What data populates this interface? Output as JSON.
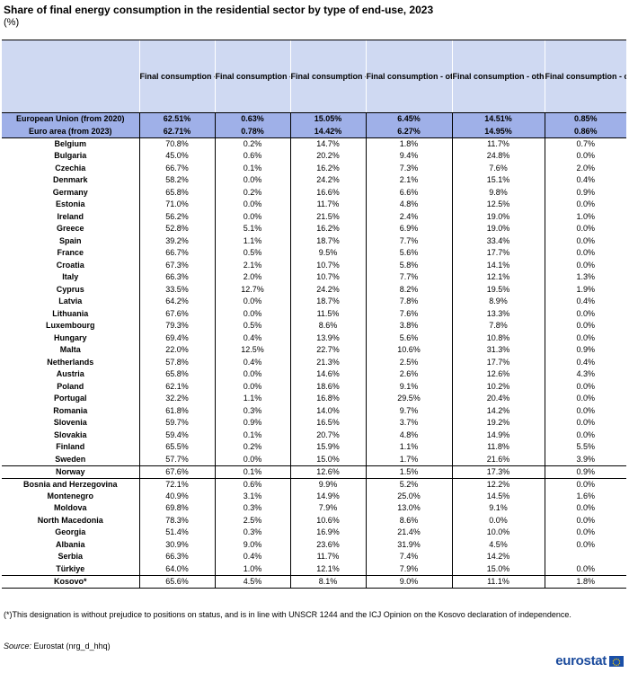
{
  "title": "Share of final energy consumption in the residential sector by type of end-use, 2023",
  "subtitle": "(%)",
  "footnote": "(*)This designation is without prejudice to positions on status, and is in line with UNSCR 1244 and the ICJ Opinion on the Kosovo declaration of independence.",
  "source_label": "Source:",
  "source_text": " Eurostat (nrg_d_hhq)",
  "logo": "eurostat",
  "colors": {
    "header_bg": "#cfd9f2",
    "aggregate_bg": "#9fb0e8",
    "logo_blue": "#1a4a9c"
  },
  "chart_data": {
    "type": "table",
    "columns": [
      "Final consumption - other sectors - households - energy use - space heating",
      "Final consumption - other sectors - households - energy use - space cooling",
      "Final consumption - other sectors - households - energy use - water heating",
      "Final consumption - other sectors - households - energy use - cooking",
      "Final consumption - other sectors - households - energy use - lighting and electrical appliances",
      "Final consumption - other sectors - households - energy use - other end use"
    ],
    "rows": [
      {
        "label": "European Union (from 2020)",
        "values": [
          "62.51%",
          "0.63%",
          "15.05%",
          "6.45%",
          "14.51%",
          "0.85%"
        ]
      },
      {
        "label": "Euro area (from 2023)",
        "values": [
          "62.71%",
          "0.78%",
          "14.42%",
          "6.27%",
          "14.95%",
          "0.86%"
        ]
      },
      {
        "label": "Belgium",
        "values": [
          "70.8%",
          "0.2%",
          "14.7%",
          "1.8%",
          "11.7%",
          "0.7%"
        ]
      },
      {
        "label": "Bulgaria",
        "values": [
          "45.0%",
          "0.6%",
          "20.2%",
          "9.4%",
          "24.8%",
          "0.0%"
        ]
      },
      {
        "label": "Czechia",
        "values": [
          "66.7%",
          "0.1%",
          "16.2%",
          "7.3%",
          "7.6%",
          "2.0%"
        ]
      },
      {
        "label": "Denmark",
        "values": [
          "58.2%",
          "0.0%",
          "24.2%",
          "2.1%",
          "15.1%",
          "0.4%"
        ]
      },
      {
        "label": "Germany",
        "values": [
          "65.8%",
          "0.2%",
          "16.6%",
          "6.6%",
          "9.8%",
          "0.9%"
        ]
      },
      {
        "label": "Estonia",
        "values": [
          "71.0%",
          "0.0%",
          "11.7%",
          "4.8%",
          "12.5%",
          "0.0%"
        ]
      },
      {
        "label": "Ireland",
        "values": [
          "56.2%",
          "0.0%",
          "21.5%",
          "2.4%",
          "19.0%",
          "1.0%"
        ]
      },
      {
        "label": "Greece",
        "values": [
          "52.8%",
          "5.1%",
          "16.2%",
          "6.9%",
          "19.0%",
          "0.0%"
        ]
      },
      {
        "label": "Spain",
        "values": [
          "39.2%",
          "1.1%",
          "18.7%",
          "7.7%",
          "33.4%",
          "0.0%"
        ]
      },
      {
        "label": "France",
        "values": [
          "66.7%",
          "0.5%",
          "9.5%",
          "5.6%",
          "17.7%",
          "0.0%"
        ]
      },
      {
        "label": "Croatia",
        "values": [
          "67.3%",
          "2.1%",
          "10.7%",
          "5.8%",
          "14.1%",
          "0.0%"
        ]
      },
      {
        "label": "Italy",
        "values": [
          "66.3%",
          "2.0%",
          "10.7%",
          "7.7%",
          "12.1%",
          "1.3%"
        ]
      },
      {
        "label": "Cyprus",
        "values": [
          "33.5%",
          "12.7%",
          "24.2%",
          "8.2%",
          "19.5%",
          "1.9%"
        ]
      },
      {
        "label": "Latvia",
        "values": [
          "64.2%",
          "0.0%",
          "18.7%",
          "7.8%",
          "8.9%",
          "0.4%"
        ]
      },
      {
        "label": "Lithuania",
        "values": [
          "67.6%",
          "0.0%",
          "11.5%",
          "7.6%",
          "13.3%",
          "0.0%"
        ]
      },
      {
        "label": "Luxembourg",
        "values": [
          "79.3%",
          "0.5%",
          "8.6%",
          "3.8%",
          "7.8%",
          "0.0%"
        ]
      },
      {
        "label": "Hungary",
        "values": [
          "69.4%",
          "0.4%",
          "13.9%",
          "5.6%",
          "10.8%",
          "0.0%"
        ]
      },
      {
        "label": "Malta",
        "values": [
          "22.0%",
          "12.5%",
          "22.7%",
          "10.6%",
          "31.3%",
          "0.9%"
        ]
      },
      {
        "label": "Netherlands",
        "values": [
          "57.8%",
          "0.4%",
          "21.3%",
          "2.5%",
          "17.7%",
          "0.4%"
        ]
      },
      {
        "label": "Austria",
        "values": [
          "65.8%",
          "0.0%",
          "14.6%",
          "2.6%",
          "12.6%",
          "4.3%"
        ]
      },
      {
        "label": "Poland",
        "values": [
          "62.1%",
          "0.0%",
          "18.6%",
          "9.1%",
          "10.2%",
          "0.0%"
        ]
      },
      {
        "label": "Portugal",
        "values": [
          "32.2%",
          "1.1%",
          "16.8%",
          "29.5%",
          "20.4%",
          "0.0%"
        ]
      },
      {
        "label": "Romania",
        "values": [
          "61.8%",
          "0.3%",
          "14.0%",
          "9.7%",
          "14.2%",
          "0.0%"
        ]
      },
      {
        "label": "Slovenia",
        "values": [
          "59.7%",
          "0.9%",
          "16.5%",
          "3.7%",
          "19.2%",
          "0.0%"
        ]
      },
      {
        "label": "Slovakia",
        "values": [
          "59.4%",
          "0.1%",
          "20.7%",
          "4.8%",
          "14.9%",
          "0.0%"
        ]
      },
      {
        "label": "Finland",
        "values": [
          "65.5%",
          "0.2%",
          "15.9%",
          "1.1%",
          "11.8%",
          "5.5%"
        ]
      },
      {
        "label": "Sweden",
        "values": [
          "57.7%",
          "0.0%",
          "15.0%",
          "1.7%",
          "21.6%",
          "3.9%"
        ]
      },
      {
        "label": "Norway",
        "values": [
          "67.6%",
          "0.1%",
          "12.6%",
          "1.5%",
          "17.3%",
          "0.9%"
        ]
      },
      {
        "label": "Bosnia and Herzegovina",
        "values": [
          "72.1%",
          "0.6%",
          "9.9%",
          "5.2%",
          "12.2%",
          "0.0%"
        ]
      },
      {
        "label": "Montenegro",
        "values": [
          "40.9%",
          "3.1%",
          "14.9%",
          "25.0%",
          "14.5%",
          "1.6%"
        ]
      },
      {
        "label": "Moldova",
        "values": [
          "69.8%",
          "0.3%",
          "7.9%",
          "13.0%",
          "9.1%",
          "0.0%"
        ]
      },
      {
        "label": "North Macedonia",
        "values": [
          "78.3%",
          "2.5%",
          "10.6%",
          "8.6%",
          "0.0%",
          "0.0%"
        ]
      },
      {
        "label": "Georgia",
        "values": [
          "51.4%",
          "0.3%",
          "16.9%",
          "21.4%",
          "10.0%",
          "0.0%"
        ]
      },
      {
        "label": "Albania",
        "values": [
          "30.9%",
          "9.0%",
          "23.6%",
          "31.9%",
          "4.5%",
          "0.0%"
        ]
      },
      {
        "label": "Serbia",
        "values": [
          "66.3%",
          "0.4%",
          "11.7%",
          "7.4%",
          "14.2%",
          ""
        ]
      },
      {
        "label": "Türkiye",
        "values": [
          "64.0%",
          "1.0%",
          "12.1%",
          "7.9%",
          "15.0%",
          "0.0%"
        ]
      },
      {
        "label": "Kosovo*",
        "values": [
          "65.6%",
          "4.5%",
          "8.1%",
          "9.0%",
          "11.1%",
          "1.8%"
        ]
      }
    ]
  }
}
